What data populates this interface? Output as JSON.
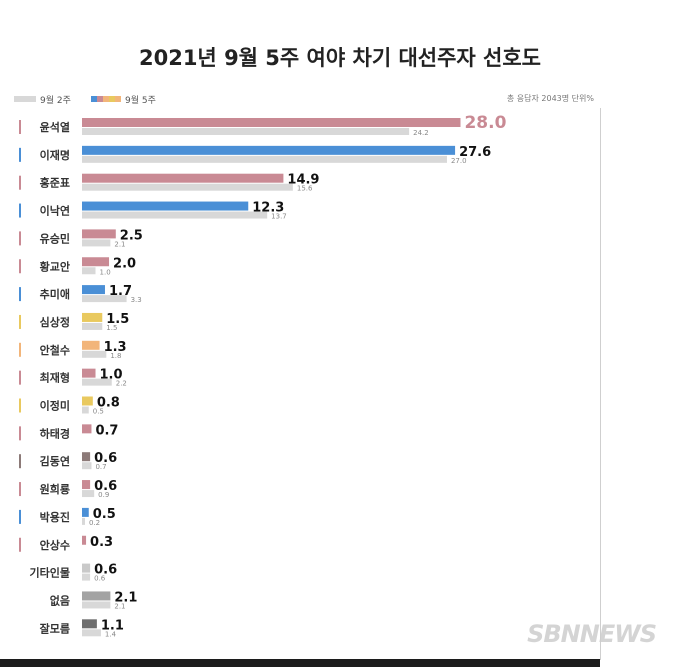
{
  "chart_data": {
    "type": "bar",
    "title": "2021년 9월 5주 여야 차기 대선주자 선호도",
    "legend": {
      "previous": "9월 2주",
      "current": "9월 5주",
      "placement": "top-left"
    },
    "note": "총 응답자 2043명    단위%",
    "unit": "%",
    "xlim": [
      0,
      29
    ],
    "categories": [
      "윤석열",
      "이재명",
      "홍준표",
      "이낙연",
      "유승민",
      "황교안",
      "추미애",
      "심상정",
      "안철수",
      "최재형",
      "이정미",
      "하태경",
      "김동연",
      "원희룡",
      "박용진",
      "안상수",
      "기타인물",
      "없음",
      "잘모름"
    ],
    "series": [
      {
        "name": "9월 5주",
        "values": [
          28.0,
          27.6,
          14.9,
          12.3,
          2.5,
          2.0,
          1.7,
          1.5,
          1.3,
          1.0,
          0.8,
          0.7,
          0.6,
          0.6,
          0.5,
          0.3,
          0.6,
          2.1,
          1.1
        ],
        "labels": [
          "28.0",
          "27.6",
          "14.9",
          "12.3",
          "2.5",
          "2.0",
          "1.7",
          "1.5",
          "1.3",
          "1.0",
          "0.8",
          "0.7",
          "0.6",
          "0.6",
          "0.5",
          "0.3",
          "0.6",
          "2.1",
          "1.1"
        ]
      },
      {
        "name": "9월 2주",
        "values": [
          24.2,
          27.0,
          15.6,
          13.7,
          2.1,
          1.0,
          3.3,
          1.5,
          1.8,
          2.2,
          0.5,
          null,
          0.7,
          0.9,
          0.2,
          null,
          0.6,
          2.1,
          1.4
        ],
        "labels": [
          "24.2",
          "27.0",
          "15.6",
          "13.7",
          "2.1",
          "1.0",
          "3.3",
          "1.5",
          "1.8",
          "2.2",
          "0.5",
          "",
          "0.7",
          "0.9",
          "0.2",
          "",
          "0.6",
          "2.1",
          "1.4"
        ]
      }
    ],
    "colors": {
      "current": [
        "#c98a94",
        "#4a8fd6",
        "#c98a94",
        "#4a8fd6",
        "#c98a94",
        "#c98a94",
        "#4a8fd6",
        "#e9c95f",
        "#f2b57a",
        "#c98a94",
        "#e9c95f",
        "#c98a94",
        "#8c7a78",
        "#c98a94",
        "#4a8fd6",
        "#c98a94",
        "#c9c9c9",
        "#a3a3a3",
        "#6e6e6e"
      ],
      "previous": "#d8d8d8",
      "marker": [
        "#c98a94",
        "#4a8fd6",
        "#c98a94",
        "#4a8fd6",
        "#c98a94",
        "#c98a94",
        "#4a8fd6",
        "#e9c95f",
        "#f2b57a",
        "#c98a94",
        "#e9c95f",
        "#c98a94",
        "#8c7a78",
        "#c98a94",
        "#4a8fd6",
        "#c98a94",
        null,
        null,
        null
      ],
      "highlight_label": "#c98a94"
    }
  },
  "watermark": "SBNNEWS"
}
